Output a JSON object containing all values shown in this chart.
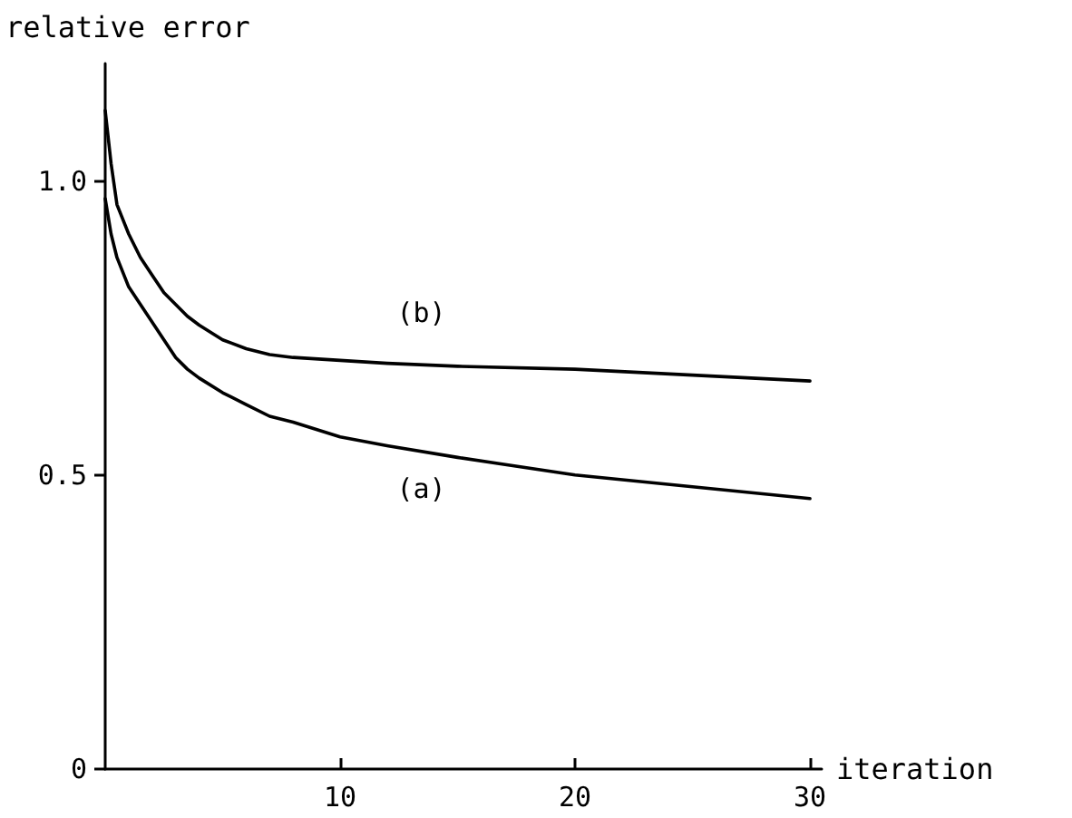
{
  "chart_data": {
    "type": "line",
    "xlabel": "iteration",
    "ylabel": "relative error",
    "xlim": [
      0,
      30.5
    ],
    "xticks": [
      10,
      20,
      30
    ],
    "ylim": [
      0,
      1.2
    ],
    "yticks": [
      0,
      0.5,
      {
        "value": 1.0,
        "label": "1.0"
      }
    ],
    "grid": false,
    "legend": false,
    "marker": "none",
    "line_style": "solid",
    "series": [
      {
        "name": "(b)",
        "color": "#000000",
        "x": [
          0,
          0.25,
          0.5,
          1,
          1.5,
          2,
          2.5,
          3,
          3.5,
          4,
          5,
          6,
          7,
          8,
          10,
          12,
          15,
          20,
          25,
          30
        ],
        "values": [
          1.12,
          1.03,
          0.96,
          0.91,
          0.87,
          0.84,
          0.81,
          0.79,
          0.77,
          0.755,
          0.73,
          0.715,
          0.705,
          0.7,
          0.695,
          0.69,
          0.685,
          0.68,
          0.67,
          0.66
        ]
      },
      {
        "name": "(a)",
        "color": "#000000",
        "x": [
          0,
          0.25,
          0.5,
          1,
          1.5,
          2,
          2.5,
          3,
          3.5,
          4,
          5,
          6,
          7,
          8,
          10,
          12,
          15,
          20,
          25,
          30
        ],
        "values": [
          0.97,
          0.91,
          0.87,
          0.82,
          0.79,
          0.76,
          0.73,
          0.7,
          0.68,
          0.665,
          0.64,
          0.62,
          0.6,
          0.59,
          0.565,
          0.55,
          0.53,
          0.5,
          0.48,
          0.46
        ]
      }
    ]
  }
}
